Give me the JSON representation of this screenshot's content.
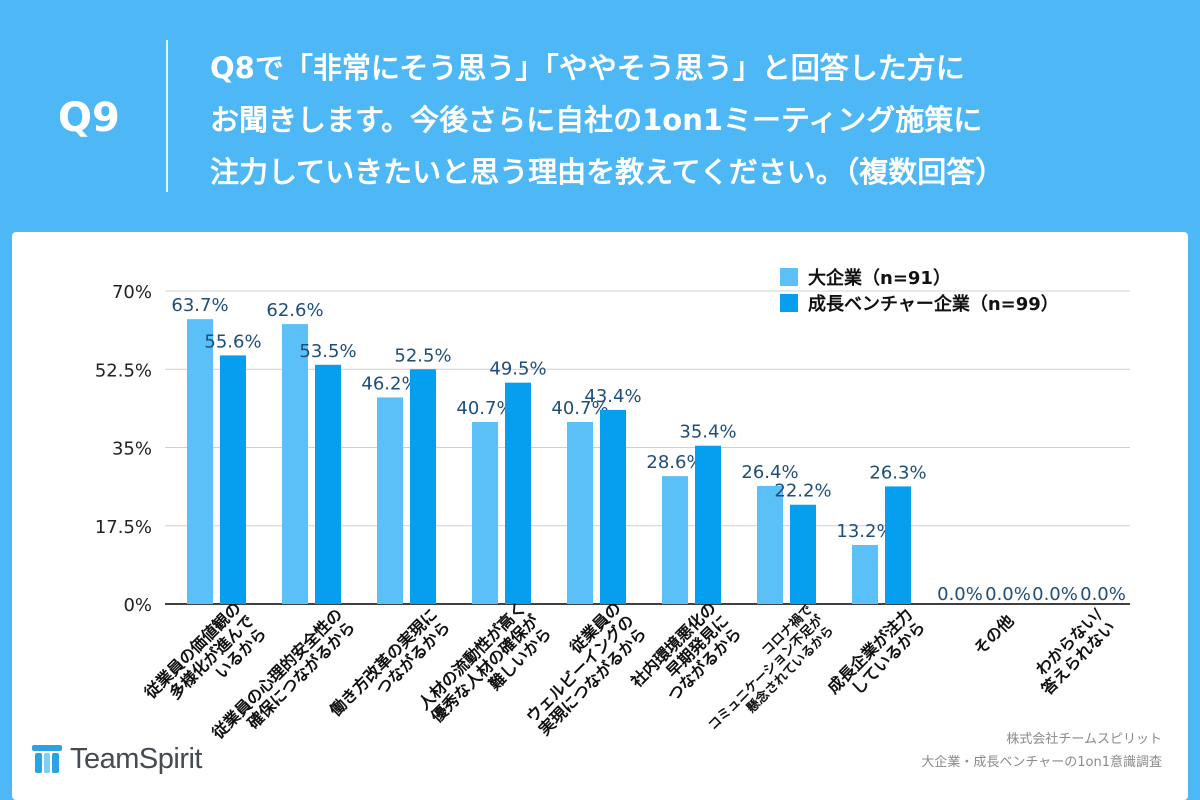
{
  "header": {
    "q_number": "Q9",
    "question_lines": [
      "Q8で「非常にそう思う」「ややそう思う」と回答した方に",
      "お聞きします。今後さらに自社の1on1ミーティング施策に",
      "注力していきたいと思う理由を教えてください。（複数回答）"
    ]
  },
  "colors": {
    "background": "#4db8f5",
    "series1": "#5bc0f8",
    "series2": "#069ff0",
    "value_label": "#1f4e79"
  },
  "chart_data": {
    "type": "bar",
    "ylim": [
      0,
      70
    ],
    "yticks": [
      0,
      17.5,
      35,
      52.5,
      70
    ],
    "ytick_labels": [
      "0%",
      "17.5%",
      "35%",
      "52.5%",
      "70%"
    ],
    "categories": [
      [
        "従業員の価値観の",
        "多様化が進んで",
        "いるから"
      ],
      [
        "従業員の心理的安全性の",
        "確保につながるから"
      ],
      [
        "働き方改革の実現に",
        "つながるから"
      ],
      [
        "人材の流動性が高く",
        "優秀な人材の確保が",
        "難しいから"
      ],
      [
        "従業員の",
        "ウェルビーイングの",
        "実現につながるから"
      ],
      [
        "社内環境悪化の",
        "早期発見に",
        "つながるから"
      ],
      [
        "コロナ禍で",
        "コミュニケーション不足が",
        "懸念されているから"
      ],
      [
        "成長企業が注力",
        "しているから"
      ],
      [
        "その他"
      ],
      [
        "わからない/",
        "答えられない"
      ]
    ],
    "series": [
      {
        "name": "大企業（n=91）",
        "values": [
          63.7,
          62.6,
          46.2,
          40.7,
          40.7,
          28.6,
          26.4,
          13.2,
          0.0,
          0.0
        ],
        "labels": [
          "63.7%",
          "62.6%",
          "46.2%",
          "40.7%",
          "40.7%",
          "28.6%",
          "26.4%",
          "13.2%",
          "0.0%",
          "0.0%"
        ]
      },
      {
        "name": "成長ベンチャー企業（n=99）",
        "values": [
          55.6,
          53.5,
          52.5,
          49.5,
          43.4,
          35.4,
          22.2,
          26.3,
          0.0,
          0.0
        ],
        "labels": [
          "55.6%",
          "53.5%",
          "52.5%",
          "49.5%",
          "43.4%",
          "35.4%",
          "22.2%",
          "26.3%",
          "0.0%",
          "0.0%"
        ]
      }
    ],
    "legend_position": "top-right"
  },
  "footer": {
    "source_lines": [
      "株式会社チームスピリット",
      "大企業・成長ベンチャーの1on1意識調査"
    ],
    "logo_text": "TeamSpirit"
  }
}
